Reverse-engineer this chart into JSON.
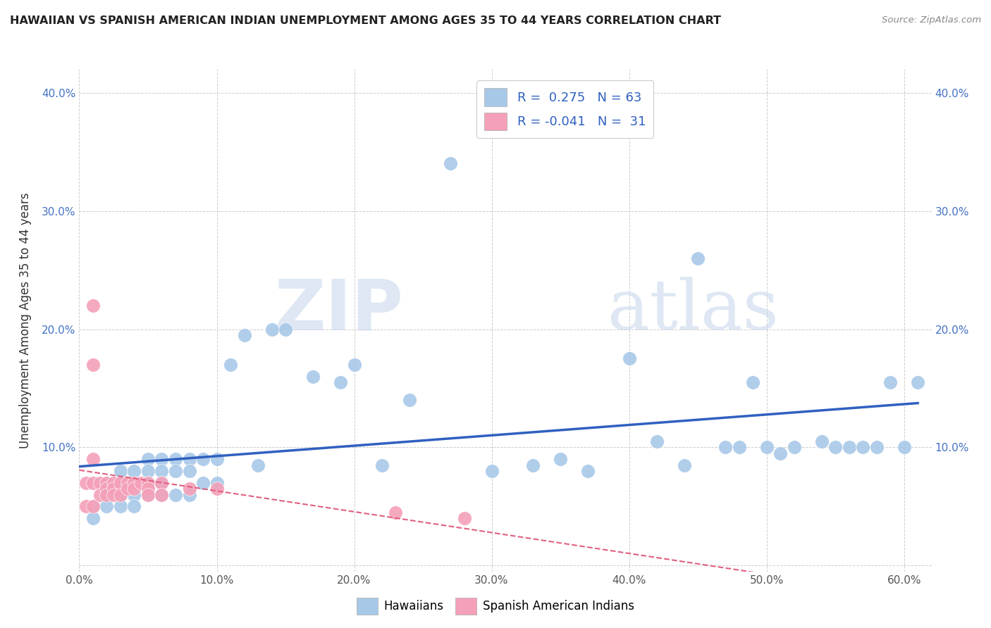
{
  "title": "HAWAIIAN VS SPANISH AMERICAN INDIAN UNEMPLOYMENT AMONG AGES 35 TO 44 YEARS CORRELATION CHART",
  "source": "Source: ZipAtlas.com",
  "ylabel_text": "Unemployment Among Ages 35 to 44 years",
  "xlim": [
    0.0,
    0.62
  ],
  "ylim": [
    -0.005,
    0.42
  ],
  "xticks": [
    0.0,
    0.1,
    0.2,
    0.3,
    0.4,
    0.5,
    0.6
  ],
  "xticklabels": [
    "0.0%",
    "10.0%",
    "20.0%",
    "30.0%",
    "40.0%",
    "50.0%",
    "60.0%"
  ],
  "yticks": [
    0.0,
    0.1,
    0.2,
    0.3,
    0.4
  ],
  "yticklabels": [
    "",
    "10.0%",
    "20.0%",
    "30.0%",
    "40.0%"
  ],
  "right_yticklabels": [
    "",
    "10.0%",
    "20.0%",
    "30.0%",
    "40.0%"
  ],
  "hawaiian_R": 0.275,
  "hawaiian_N": 63,
  "spanish_R": -0.041,
  "spanish_N": 31,
  "hawaiian_color": "#a8c8e8",
  "spanish_color": "#f4a0b8",
  "hawaiian_line_color": "#3060c0",
  "spanish_line_color": "#e06080",
  "watermark_zip": "ZIP",
  "watermark_atlas": "atlas",
  "background_color": "#ffffff",
  "grid_color": "#c8c8c8",
  "hawaiian_x": [
    0.01,
    0.01,
    0.02,
    0.02,
    0.02,
    0.03,
    0.03,
    0.03,
    0.03,
    0.04,
    0.04,
    0.04,
    0.05,
    0.05,
    0.05,
    0.05,
    0.06,
    0.06,
    0.06,
    0.06,
    0.07,
    0.07,
    0.07,
    0.08,
    0.08,
    0.08,
    0.09,
    0.09,
    0.1,
    0.1,
    0.11,
    0.12,
    0.13,
    0.14,
    0.15,
    0.17,
    0.19,
    0.2,
    0.22,
    0.24,
    0.27,
    0.3,
    0.33,
    0.35,
    0.37,
    0.4,
    0.42,
    0.44,
    0.45,
    0.47,
    0.48,
    0.49,
    0.5,
    0.51,
    0.52,
    0.54,
    0.55,
    0.56,
    0.57,
    0.58,
    0.59,
    0.6,
    0.61
  ],
  "hawaiian_y": [
    0.05,
    0.04,
    0.07,
    0.06,
    0.05,
    0.08,
    0.07,
    0.06,
    0.05,
    0.08,
    0.06,
    0.05,
    0.09,
    0.08,
    0.07,
    0.06,
    0.09,
    0.08,
    0.07,
    0.06,
    0.09,
    0.08,
    0.06,
    0.09,
    0.08,
    0.06,
    0.09,
    0.07,
    0.09,
    0.07,
    0.17,
    0.195,
    0.085,
    0.2,
    0.2,
    0.16,
    0.155,
    0.17,
    0.085,
    0.14,
    0.34,
    0.08,
    0.085,
    0.09,
    0.08,
    0.175,
    0.105,
    0.085,
    0.26,
    0.1,
    0.1,
    0.155,
    0.1,
    0.095,
    0.1,
    0.105,
    0.1,
    0.1,
    0.1,
    0.1,
    0.155,
    0.1,
    0.155
  ],
  "spanish_x": [
    0.005,
    0.005,
    0.01,
    0.01,
    0.01,
    0.01,
    0.01,
    0.015,
    0.015,
    0.02,
    0.02,
    0.02,
    0.025,
    0.025,
    0.025,
    0.03,
    0.03,
    0.035,
    0.035,
    0.04,
    0.04,
    0.045,
    0.05,
    0.05,
    0.05,
    0.06,
    0.06,
    0.08,
    0.1,
    0.23,
    0.28
  ],
  "spanish_y": [
    0.07,
    0.05,
    0.22,
    0.17,
    0.09,
    0.07,
    0.05,
    0.07,
    0.06,
    0.07,
    0.065,
    0.06,
    0.07,
    0.065,
    0.06,
    0.07,
    0.06,
    0.07,
    0.065,
    0.07,
    0.065,
    0.07,
    0.07,
    0.065,
    0.06,
    0.07,
    0.06,
    0.065,
    0.065,
    0.045,
    0.04
  ]
}
